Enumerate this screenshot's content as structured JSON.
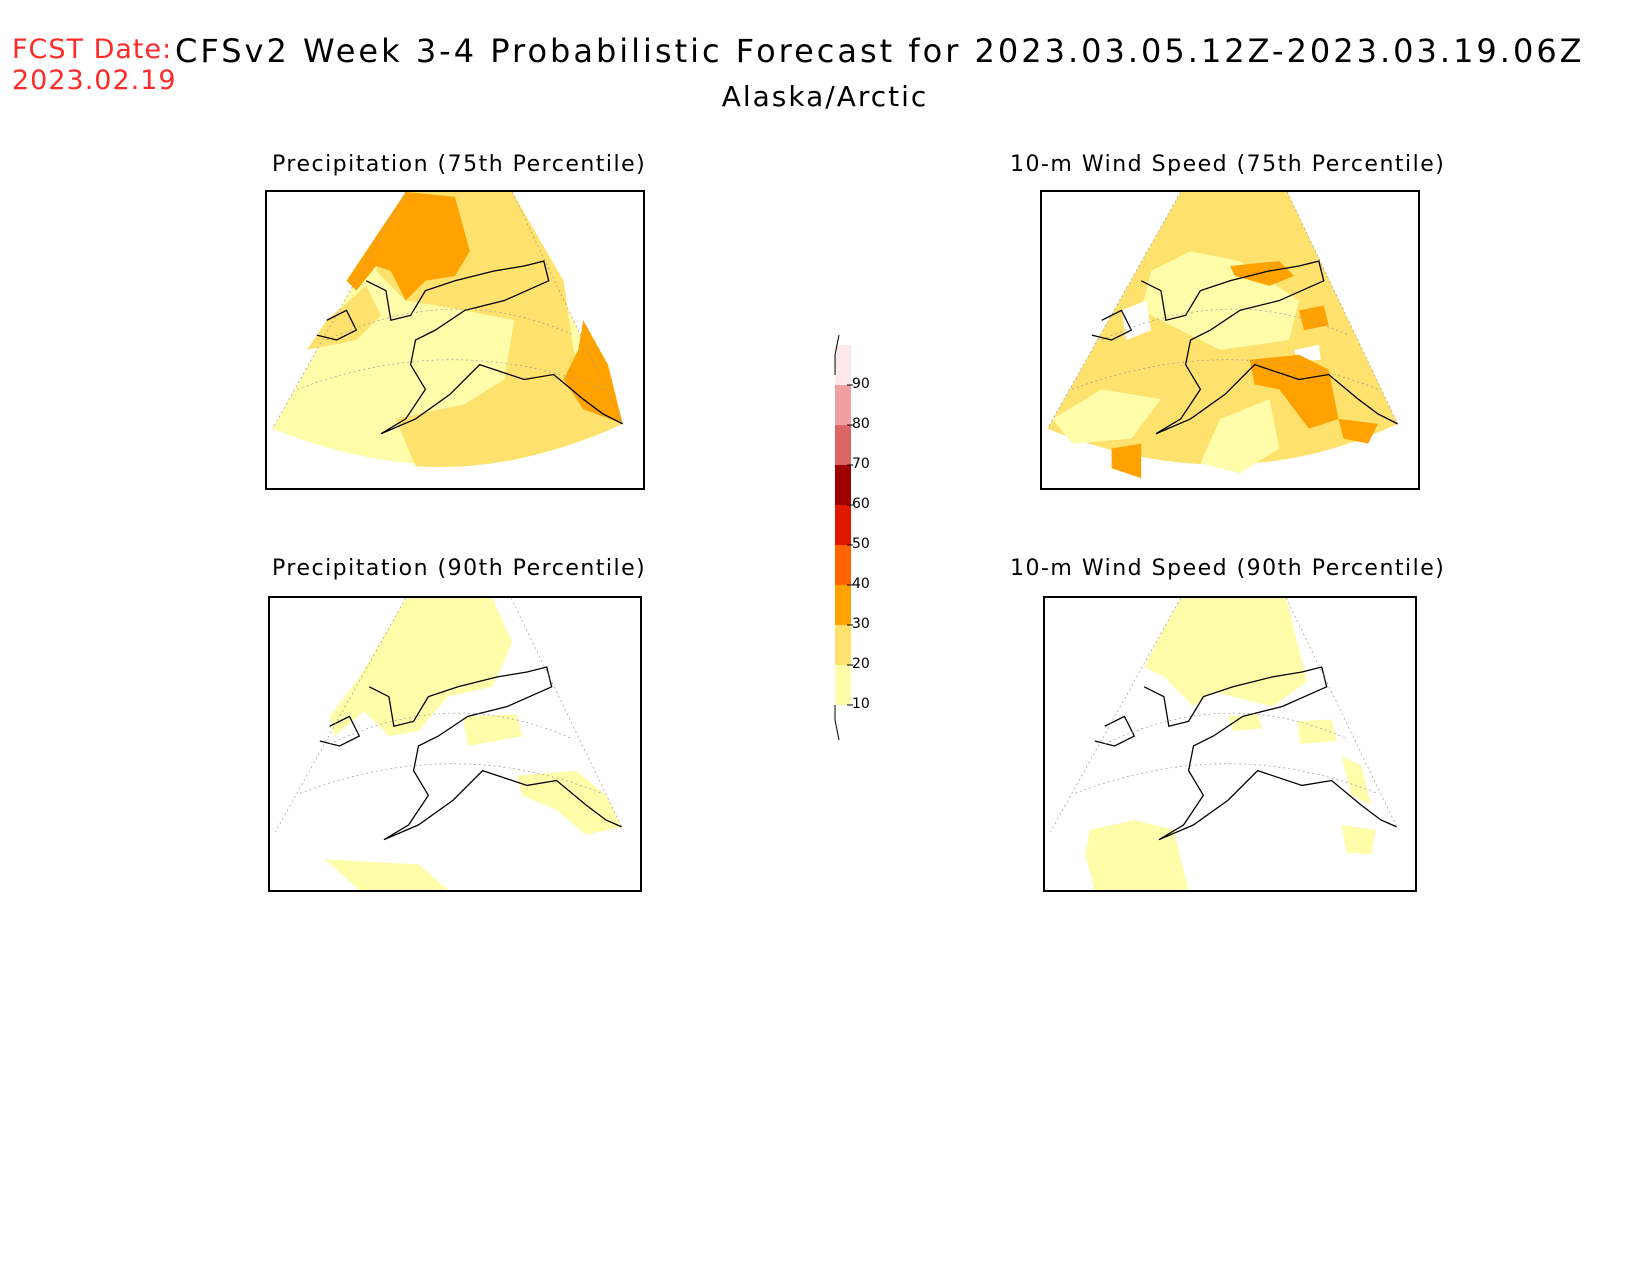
{
  "header": {
    "fcst_label": "FCST Date:",
    "fcst_date": "2023.02.19",
    "title": "CFSv2 Week 3-4 Probabilistic Forecast for 2023.03.05.12Z-2023.03.19.06Z",
    "region": "Alaska/Arctic"
  },
  "panels": [
    {
      "title": "Precipitation (75th Percentile)"
    },
    {
      "title": "10-m Wind Speed (75th Percentile)"
    },
    {
      "title": "Precipitation (90th Percentile)"
    },
    {
      "title": "10-m Wind Speed (90th Percentile)"
    }
  ],
  "colorbar": {
    "levels": [
      "10",
      "20",
      "30",
      "40",
      "50",
      "60",
      "70",
      "80",
      "90"
    ],
    "colors": {
      "10-20": "#fffcaa",
      "20-30": "#ffe16e",
      "30-40": "#ffa200",
      "40-50": "#ff6400",
      "50-60": "#e01800",
      "60-70": "#a00000",
      "70-80": "#dc6464",
      "80-90": "#f0a0a0",
      "90-100": "#fce8e8"
    }
  }
}
